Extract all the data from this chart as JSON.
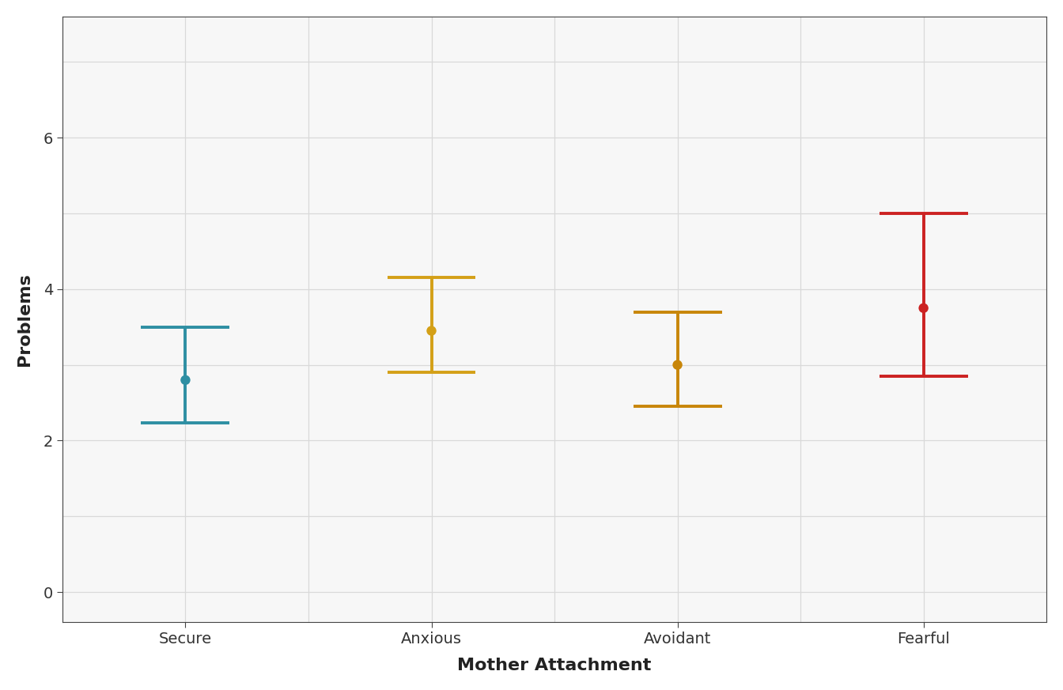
{
  "categories": [
    "Secure",
    "Anxious",
    "Avoidant",
    "Fearful"
  ],
  "means": [
    2.8,
    3.45,
    3.0,
    3.75
  ],
  "ci_lower": [
    2.23,
    2.9,
    2.45,
    2.85
  ],
  "ci_upper": [
    3.5,
    4.15,
    3.7,
    5.0
  ],
  "colors": [
    "#2E8FA3",
    "#D4A017",
    "#C8860A",
    "#CC2222"
  ],
  "xlabel": "Mother Attachment",
  "ylabel": "Problems",
  "ylim": [
    -0.4,
    7.6
  ],
  "yticks": [
    0,
    2,
    4,
    6
  ],
  "panel_background": "#f7f7f7",
  "outer_background": "#ffffff",
  "grid_color": "#d9d9d9",
  "spine_color": "#444444",
  "tick_label_fontsize": 14,
  "axis_label_fontsize": 16,
  "point_size": 80,
  "linewidth": 2.8,
  "capsize_half": 0.18
}
